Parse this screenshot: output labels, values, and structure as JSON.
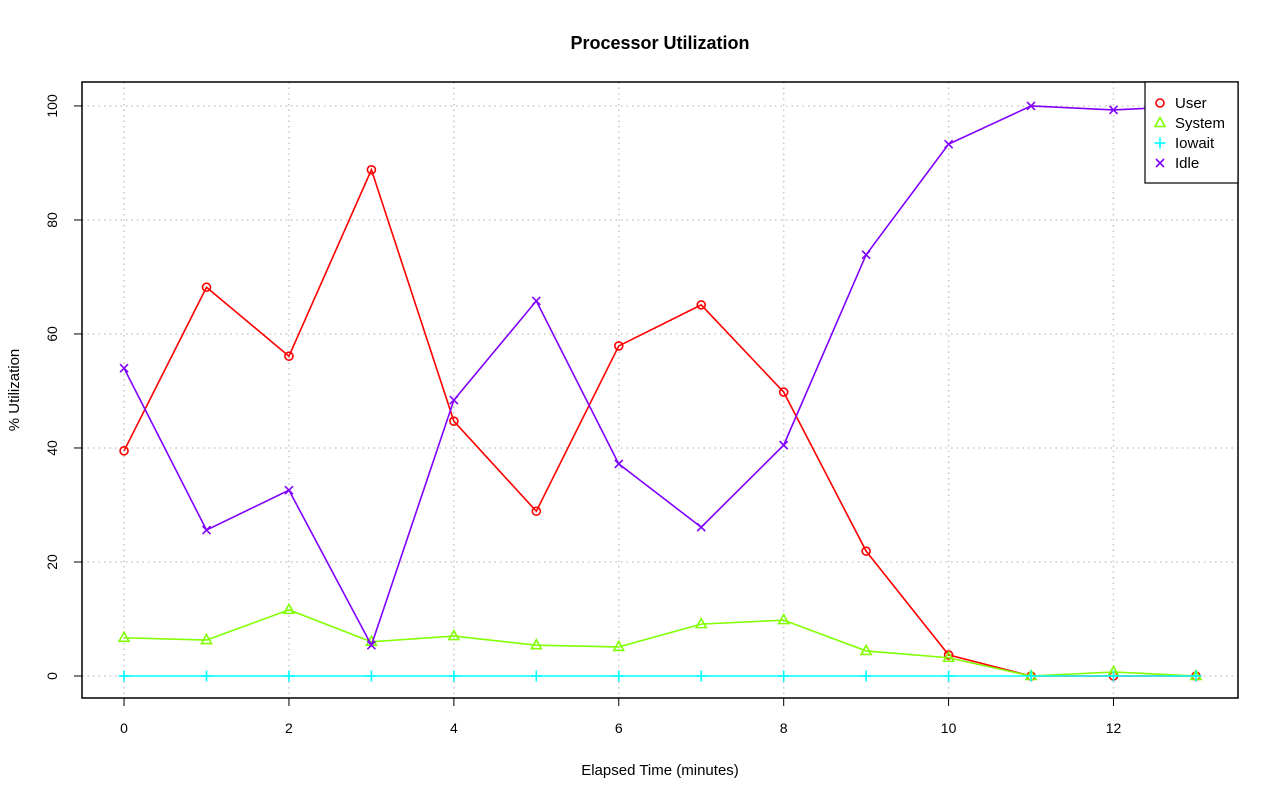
{
  "chart_data": {
    "type": "line",
    "title": "Processor Utilization",
    "xlabel": "Elapsed Time (minutes)",
    "ylabel": "% Utilization",
    "xlim": [
      -0.51,
      13.51
    ],
    "ylim": [
      -3.86,
      104.2
    ],
    "x_ticks": [
      0,
      2,
      4,
      6,
      8,
      10,
      12
    ],
    "y_ticks": [
      0,
      20,
      40,
      60,
      80,
      100
    ],
    "grid": true,
    "legend_placement": "top-right",
    "x": [
      0,
      1,
      2,
      3,
      4,
      5,
      6,
      7,
      8,
      9,
      10,
      11,
      12,
      13
    ],
    "series": [
      {
        "name": "User",
        "color": "#ff0000",
        "marker": "circle",
        "values": [
          39.5,
          68.2,
          56.1,
          88.8,
          44.7,
          28.9,
          57.9,
          65.1,
          49.8,
          21.9,
          3.7,
          0,
          0,
          0
        ]
      },
      {
        "name": "System",
        "color": "#80ff00",
        "marker": "triangle",
        "values": [
          6.7,
          6.3,
          11.6,
          6.0,
          7.0,
          5.4,
          5.1,
          9.1,
          9.8,
          4.4,
          3.2,
          0,
          0.7,
          0
        ]
      },
      {
        "name": "Iowait",
        "color": "#00ffff",
        "marker": "plus",
        "values": [
          0,
          0,
          0,
          0,
          0,
          0,
          0,
          0,
          0,
          0,
          0,
          0,
          0,
          0
        ]
      },
      {
        "name": "Idle",
        "color": "#8000ff",
        "marker": "cross",
        "values": [
          54.0,
          25.6,
          32.6,
          5.4,
          48.4,
          65.8,
          37.2,
          26.1,
          40.5,
          73.9,
          93.3,
          100,
          99.3,
          100
        ]
      }
    ]
  }
}
